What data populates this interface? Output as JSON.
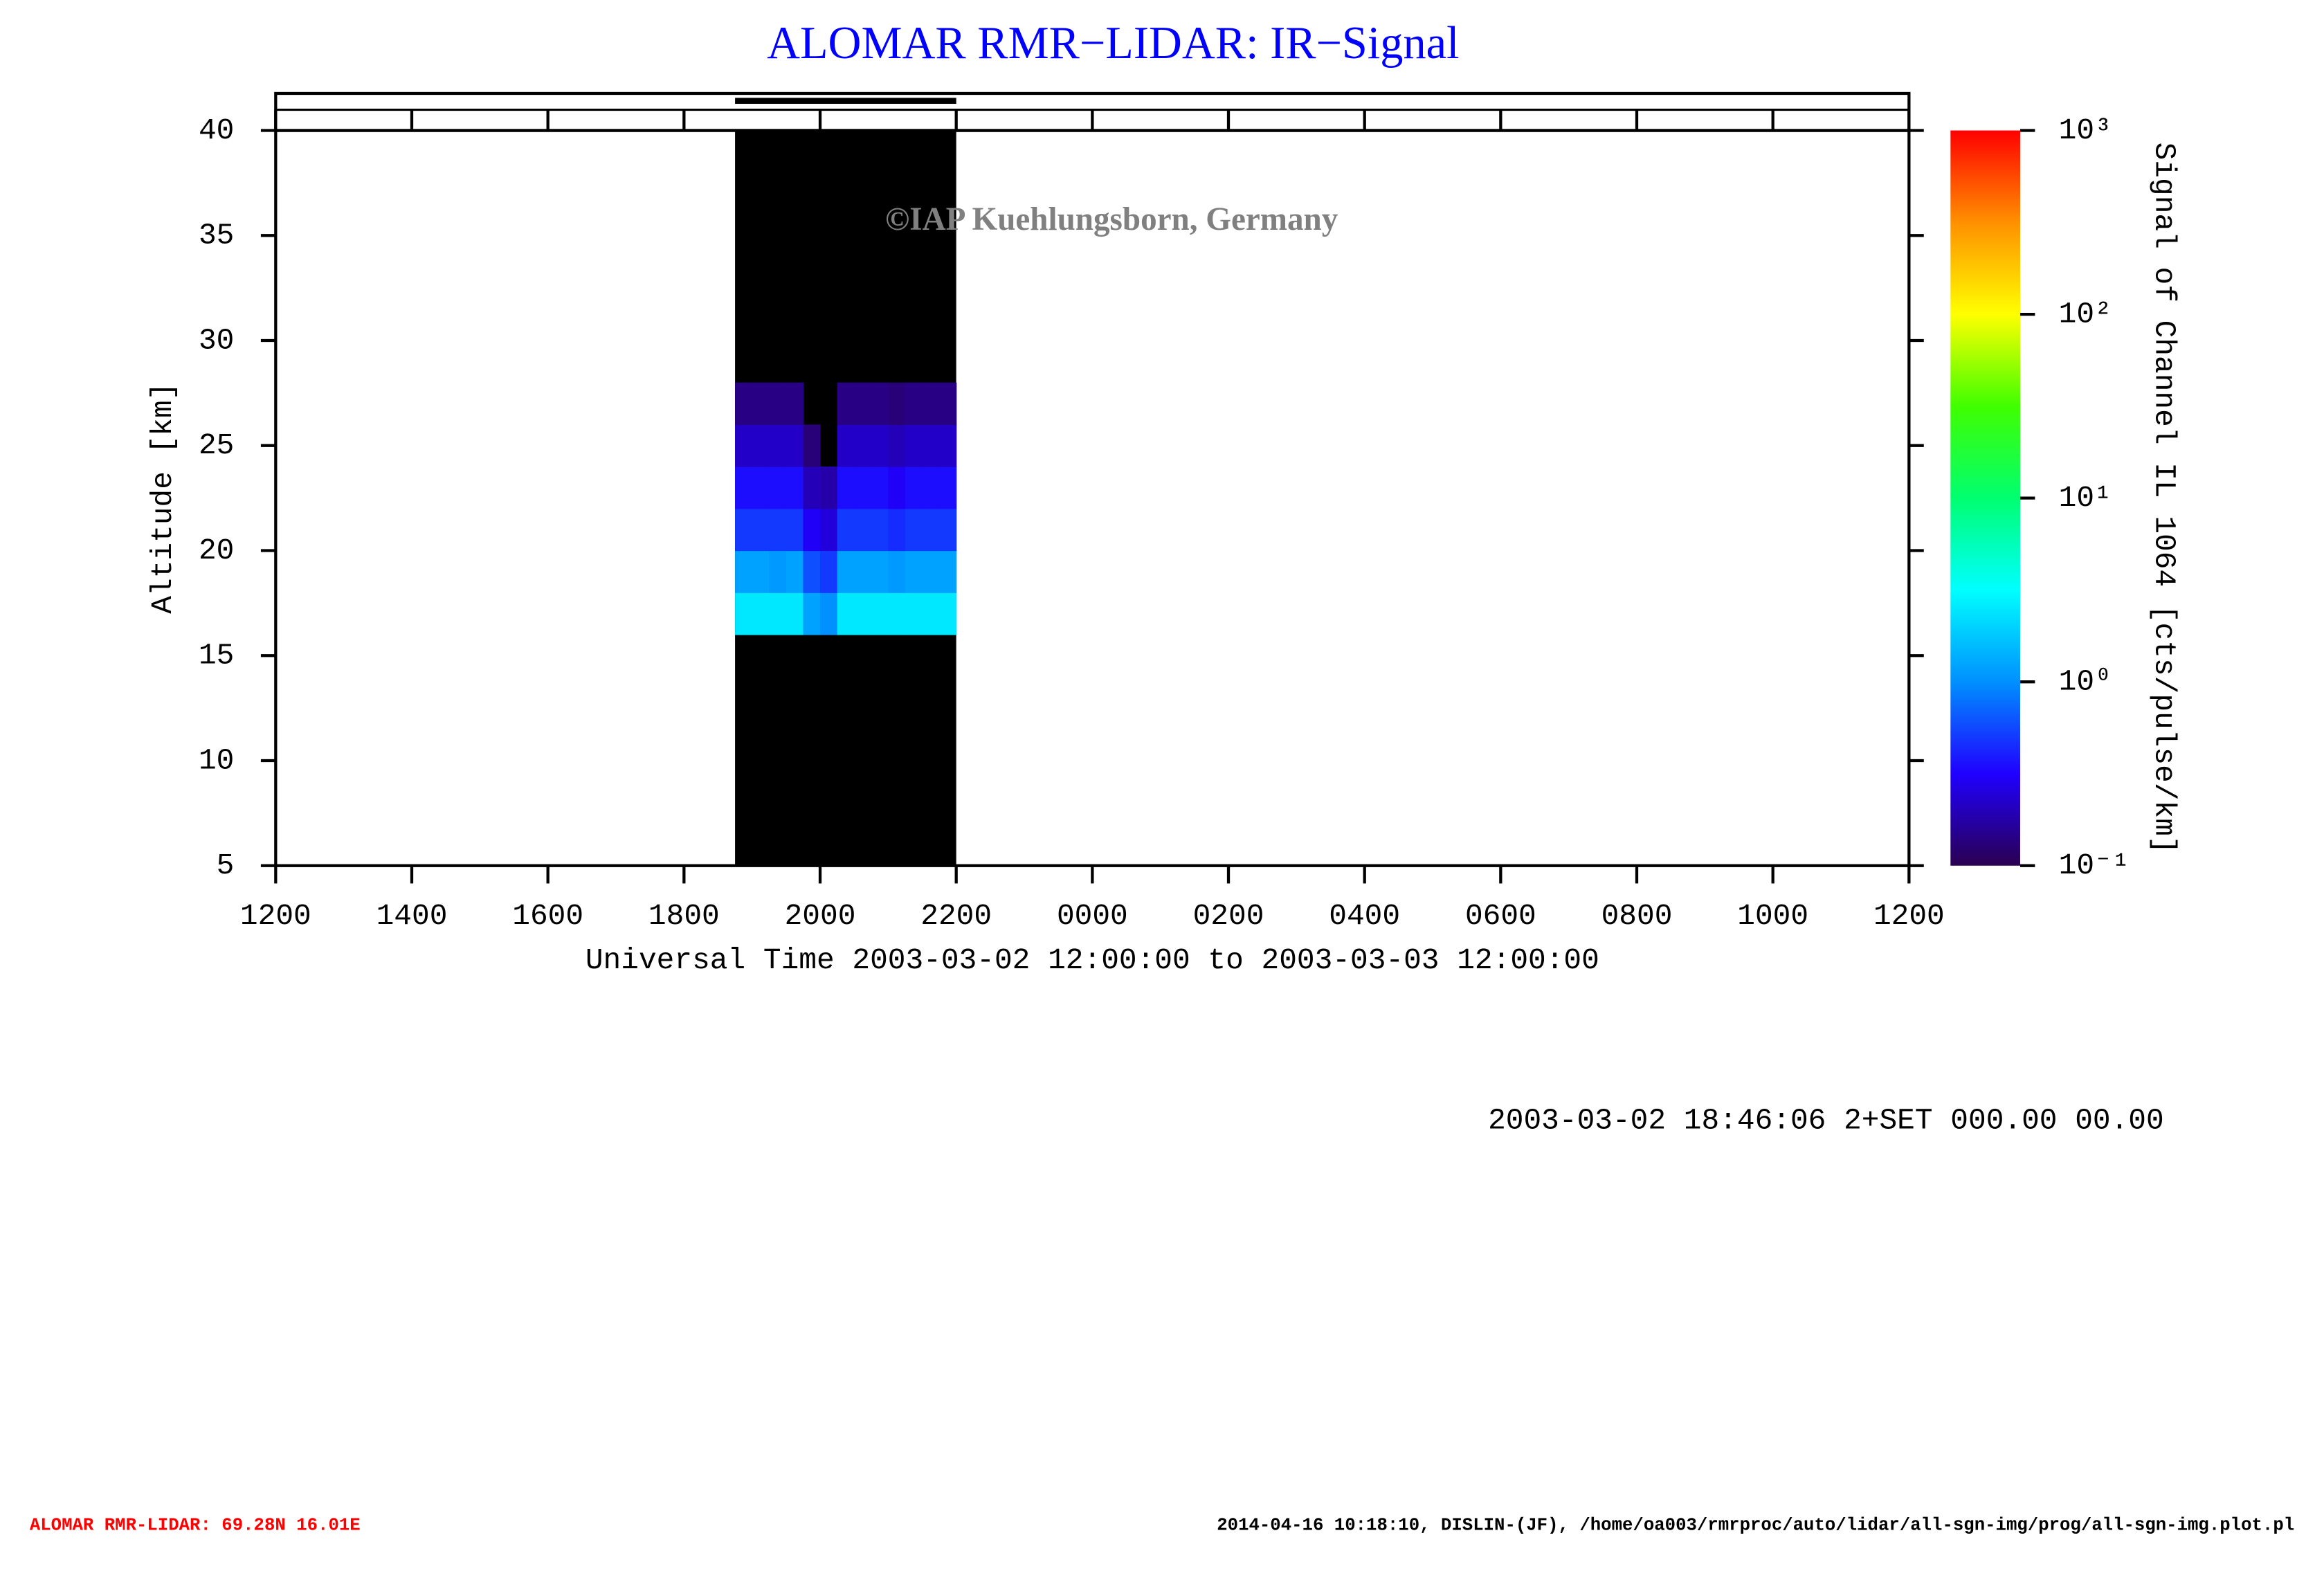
{
  "chart_data": {
    "type": "heatmap",
    "title": "ALOMAR RMR−LIDAR: IR−Signal",
    "watermark": "©IAP Kuehlungsborn, Germany",
    "xlabel": "Universal Time 2003-03-02 12:00:00 to 2003-03-03 12:00:00",
    "ylabel": "Altitude [km]",
    "colorbar_label": "Signal of Channel IL 1064 [cts/pulse/km]",
    "status": "2003-03-02 18:46:06 2+SET 000.00 00.00",
    "footer_left": "ALOMAR RMR-LIDAR: 69.28N 16.01E",
    "footer_right": "2014-04-16 10:18:10, DISLIN-(JF), /home/oa003/rmrproc/auto/lidar/all-sgn-img/prog/all-sgn-img.plot.pl",
    "xlim": [
      0,
      24
    ],
    "xticks": [
      {
        "value": 0,
        "label": "1200"
      },
      {
        "value": 2,
        "label": "1400"
      },
      {
        "value": 4,
        "label": "1600"
      },
      {
        "value": 6,
        "label": "1800"
      },
      {
        "value": 8,
        "label": "2000"
      },
      {
        "value": 10,
        "label": "2200"
      },
      {
        "value": 12,
        "label": "0000"
      },
      {
        "value": 14,
        "label": "0200"
      },
      {
        "value": 16,
        "label": "0400"
      },
      {
        "value": 18,
        "label": "0600"
      },
      {
        "value": 20,
        "label": "0800"
      },
      {
        "value": 22,
        "label": "1000"
      },
      {
        "value": 24,
        "label": "1200"
      }
    ],
    "ylim": [
      5,
      40
    ],
    "yticks": [
      5,
      10,
      15,
      20,
      25,
      30,
      35,
      40
    ],
    "coverage": [
      6.75,
      10
    ],
    "x_edges": [
      6.75,
      7,
      7.25,
      7.5,
      7.75,
      8,
      8.25,
      8.5,
      8.75,
      9,
      9.25,
      9.5,
      9.75,
      10
    ],
    "y_edges": [
      16,
      18,
      20,
      22,
      24,
      26,
      28
    ],
    "z": [
      [
        2.5,
        2.5,
        2.5,
        2.5,
        1.2,
        1.0,
        2.5,
        2.5,
        2.5,
        2.5,
        2.5,
        2.5,
        2.5
      ],
      [
        1.2,
        1.2,
        1.1,
        1.2,
        0.6,
        0.5,
        1.2,
        1.2,
        1.2,
        1.1,
        1.2,
        1.2,
        1.2
      ],
      [
        0.5,
        0.5,
        0.5,
        0.5,
        0.3,
        0.25,
        0.5,
        0.5,
        0.5,
        0.45,
        0.5,
        0.5,
        0.5
      ],
      [
        0.35,
        0.35,
        0.35,
        0.35,
        0.2,
        0.18,
        0.35,
        0.35,
        0.35,
        0.3,
        0.35,
        0.35,
        0.35
      ],
      [
        0.22,
        0.22,
        0.22,
        0.22,
        0.13,
        null,
        0.22,
        0.22,
        0.22,
        0.2,
        0.22,
        0.22,
        0.22
      ],
      [
        0.14,
        0.14,
        0.14,
        0.14,
        null,
        null,
        0.14,
        0.14,
        0.14,
        0.13,
        0.14,
        0.14,
        0.14
      ]
    ],
    "clim": [
      0.1,
      1000
    ],
    "log_color": true,
    "cticks": [
      {
        "value": 0.1,
        "label": "10⁻¹"
      },
      {
        "value": 1,
        "label": "10⁰"
      },
      {
        "value": 10,
        "label": "10¹"
      },
      {
        "value": 100,
        "label": "10²"
      },
      {
        "value": 1000,
        "label": "10³"
      }
    ],
    "colormap": [
      "#2a0050",
      "#2000ff",
      "#0090ff",
      "#00ffff",
      "#00ff70",
      "#40ff00",
      "#ffff00",
      "#ff9000",
      "#ff0000"
    ],
    "coverage_color": "#000000"
  }
}
